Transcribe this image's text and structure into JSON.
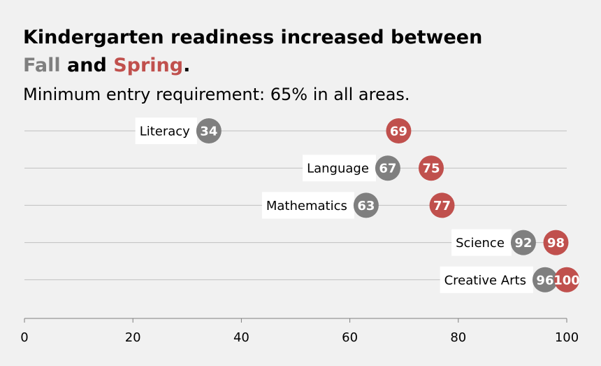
{
  "title": {
    "line1": "Kindergarten readiness increased between",
    "fall": "Fall",
    "and": "and",
    "spring": "Spring",
    "period": "."
  },
  "subtitle": "Minimum entry requirement: 65% in all areas.",
  "colors": {
    "fall": "#7f7f7f",
    "spring": "#c0504d",
    "background": "#f1f1f1",
    "gridline": "#bfbfbf"
  },
  "chart_data": {
    "type": "dot",
    "categories": [
      "Literacy",
      "Language",
      "Mathematics",
      "Science",
      "Creative Arts"
    ],
    "series": [
      {
        "name": "Fall",
        "values": [
          34,
          67,
          63,
          92,
          96
        ]
      },
      {
        "name": "Spring",
        "values": [
          69,
          75,
          77,
          98,
          100
        ]
      }
    ],
    "xlim": [
      0,
      100
    ],
    "xticks": [
      0,
      20,
      40,
      60,
      80,
      100
    ],
    "grid": "horizontal per category"
  }
}
